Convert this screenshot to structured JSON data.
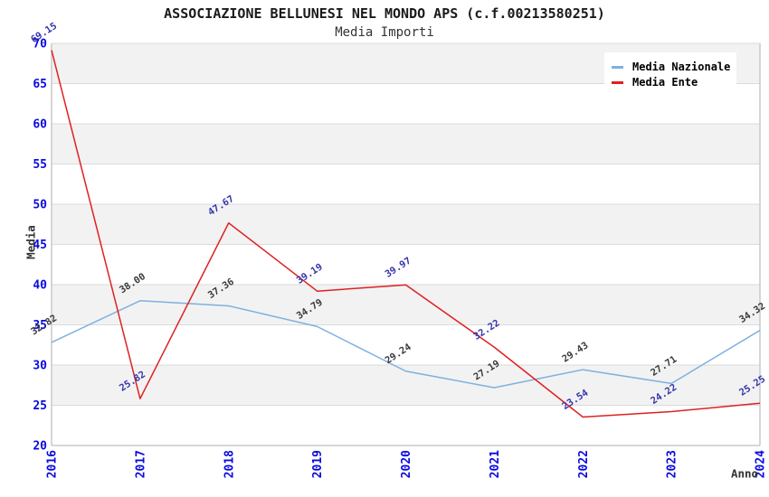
{
  "header": {
    "title": "ASSOCIAZIONE BELLUNESI NEL MONDO APS (c.f.00213580251)",
    "subtitle": "Media Importi"
  },
  "chart_data": {
    "type": "line",
    "title": "ASSOCIAZIONE BELLUNESI NEL MONDO APS (c.f.00213580251)",
    "subtitle": "Media Importi",
    "xlabel": "Anno",
    "ylabel": "Media",
    "categories": [
      "2016",
      "2017",
      "2018",
      "2019",
      "2020",
      "2021",
      "2022",
      "2023",
      "2024"
    ],
    "series": [
      {
        "name": "Media Nazionale",
        "color": "#7db1e0",
        "label_color": "#3a3a3a",
        "values": [
          32.82,
          38.0,
          37.36,
          34.79,
          29.24,
          27.19,
          29.43,
          27.71,
          34.32
        ]
      },
      {
        "name": "Media Ente",
        "color": "#e02020",
        "label_color": "#3434ae",
        "values": [
          69.15,
          25.82,
          47.67,
          39.19,
          39.97,
          32.22,
          23.54,
          24.22,
          25.25
        ]
      }
    ],
    "ylim": [
      20,
      70
    ],
    "ytick_step": 5,
    "yticks": [
      20,
      25,
      30,
      35,
      40,
      45,
      50,
      55,
      60,
      65,
      70
    ],
    "grid": "horizontal-bands",
    "legend_position": "top-right",
    "colors": {
      "tick_label": "#0a0ae0",
      "band": "#f2f2f2",
      "gridline": "#dbdbdb",
      "spine": "#c9c9c9",
      "background": "#ffffff"
    }
  }
}
